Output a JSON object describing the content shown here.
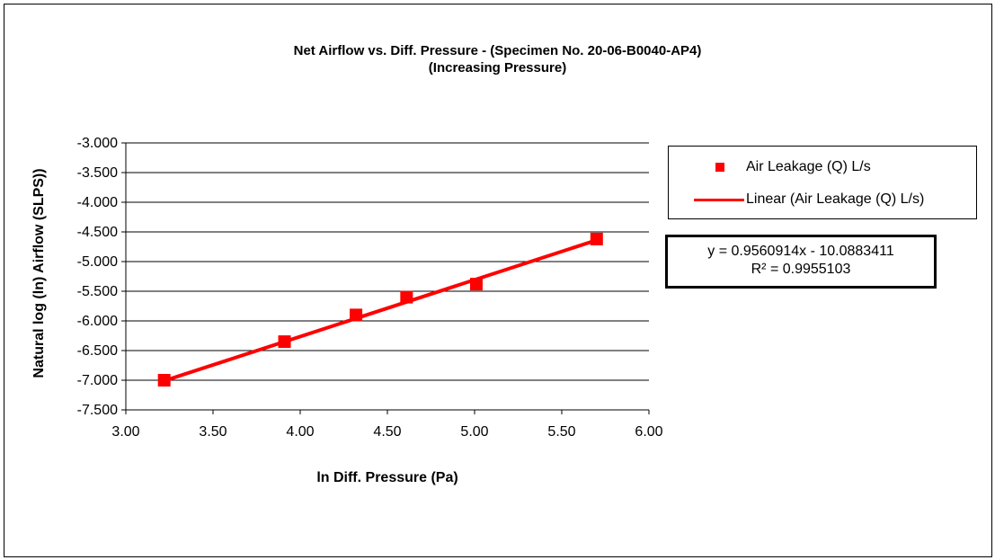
{
  "chart_data": {
    "type": "scatter",
    "title": [
      "Net Airflow  vs. Diff. Pressure - (Specimen No. 20-06-B0040-AP4)",
      "(Increasing Pressure)"
    ],
    "xlabel": "ln Diff. Pressure (Pa)",
    "ylabel": "Natural log (ln) Airflow (SLPS))",
    "xlim": [
      3.0,
      6.0
    ],
    "ylim": [
      -7.5,
      -3.0
    ],
    "x_ticks": [
      "3.00",
      "3.50",
      "4.00",
      "4.50",
      "5.00",
      "5.50",
      "6.00"
    ],
    "y_ticks": [
      "-3.000",
      "-3.500",
      "-4.000",
      "-4.500",
      "-5.000",
      "-5.500",
      "-6.000",
      "-6.500",
      "-7.000",
      "-7.500"
    ],
    "grid": "horizontal",
    "legend_position": "right",
    "series": [
      {
        "name": "Air Leakage (Q) L/s",
        "x": [
          3.22,
          3.91,
          4.32,
          4.61,
          5.01,
          5.7
        ],
        "y": [
          -7.0,
          -6.35,
          -5.9,
          -5.6,
          -5.38,
          -4.62
        ],
        "color": "#ff0000",
        "marker": "square"
      }
    ],
    "trendline": {
      "name": "Linear (Air Leakage (Q) L/s)",
      "slope": 0.9560914,
      "intercept": -10.0883411,
      "x_range": [
        3.22,
        5.7
      ],
      "color": "#ff0000"
    },
    "annotation": {
      "equation": "y = 0.9560914x  - 10.0883411",
      "r_squared": "R² = 0.9955103"
    }
  }
}
